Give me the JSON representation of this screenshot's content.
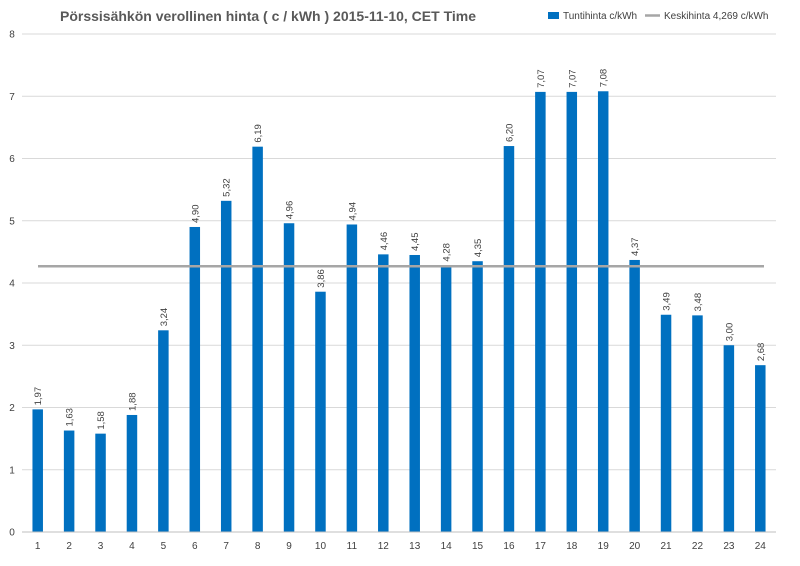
{
  "chart_data": {
    "type": "bar",
    "title": "Pörssisähkön verollinen hinta ( c / kWh ) 2015-11-10, CET Time",
    "categories": [
      "1",
      "2",
      "3",
      "4",
      "5",
      "6",
      "7",
      "8",
      "9",
      "10",
      "11",
      "12",
      "13",
      "14",
      "15",
      "16",
      "17",
      "18",
      "19",
      "20",
      "21",
      "22",
      "23",
      "24"
    ],
    "series": [
      {
        "name": "Tuntihinta c/kWh",
        "color": "#0070c0",
        "values": [
          1.97,
          1.63,
          1.58,
          1.88,
          3.24,
          4.9,
          5.32,
          6.19,
          4.96,
          3.86,
          4.94,
          4.46,
          4.45,
          4.28,
          4.35,
          6.2,
          7.07,
          7.07,
          7.08,
          4.37,
          3.49,
          3.48,
          3.0,
          2.68
        ],
        "labels": [
          "1,97",
          "1,63",
          "1,58",
          "1,88",
          "3,24",
          "4,90",
          "5,32",
          "6,19",
          "4,96",
          "3,86",
          "4,94",
          "4,46",
          "4,45",
          "4,28",
          "4,35",
          "6,20",
          "7,07",
          "7,07",
          "7,08",
          "4,37",
          "3,49",
          "3,48",
          "3,00",
          "2,68"
        ]
      }
    ],
    "reference_line": {
      "name": "Keskihinta 4,269 c/kWh",
      "value": 4.269,
      "color": "#a6a6a6"
    },
    "ylim": [
      0,
      8
    ],
    "yticks": [
      "0",
      "1",
      "2",
      "3",
      "4",
      "5",
      "6",
      "7",
      "8"
    ],
    "grid": true,
    "legend_position": "top-right",
    "xlabel": "",
    "ylabel": ""
  }
}
